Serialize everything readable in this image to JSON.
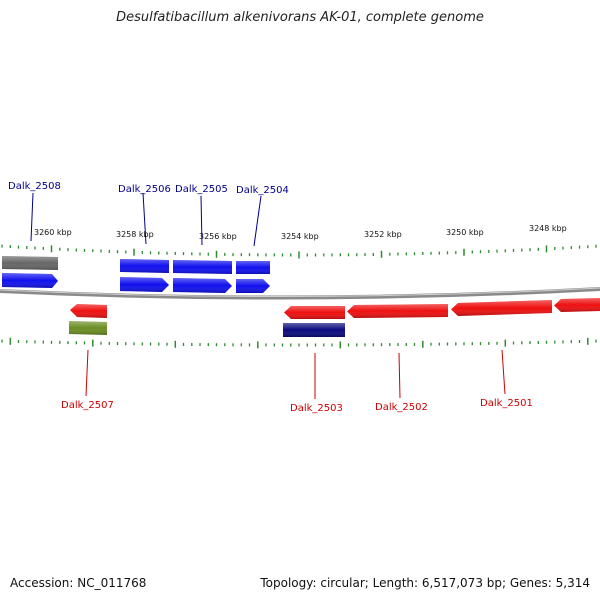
{
  "title": "Desulfatibacillum alkenivorans AK-01, complete genome",
  "footer": {
    "accession": "Accession: NC_011768",
    "topology": "Topology: circular; Length: 6,517,073 bp; Genes: 5,314"
  },
  "colors": {
    "forward_gene": "#1010ee",
    "reverse_gene": "#ee1010",
    "other_forward": "#666666",
    "other_reverse": "#6b8e23",
    "dark_reverse": "#0a0a80",
    "tick": "#2e8b2e",
    "backbone": "#8a8a8a",
    "forward_label": "#00008b",
    "reverse_label": "#cc0000"
  },
  "kbp_labels": [
    "3260 kbp",
    "3258 kbp",
    "3256 kbp",
    "3254 kbp",
    "3252 kbp",
    "3250 kbp",
    "3248 kbp"
  ],
  "genes_top": [
    {
      "id": "g2508",
      "label": "Dalk_2508"
    },
    {
      "id": "g2506",
      "label": "Dalk_2506"
    },
    {
      "id": "g2505",
      "label": "Dalk_2505"
    },
    {
      "id": "g2504",
      "label": "Dalk_2504"
    }
  ],
  "genes_bottom": [
    {
      "id": "g2507",
      "label": "Dalk_2507"
    },
    {
      "id": "g2503",
      "label": "Dalk_2503"
    },
    {
      "id": "g2502",
      "label": "Dalk_2502"
    },
    {
      "id": "g2501",
      "label": "Dalk_2501"
    }
  ]
}
